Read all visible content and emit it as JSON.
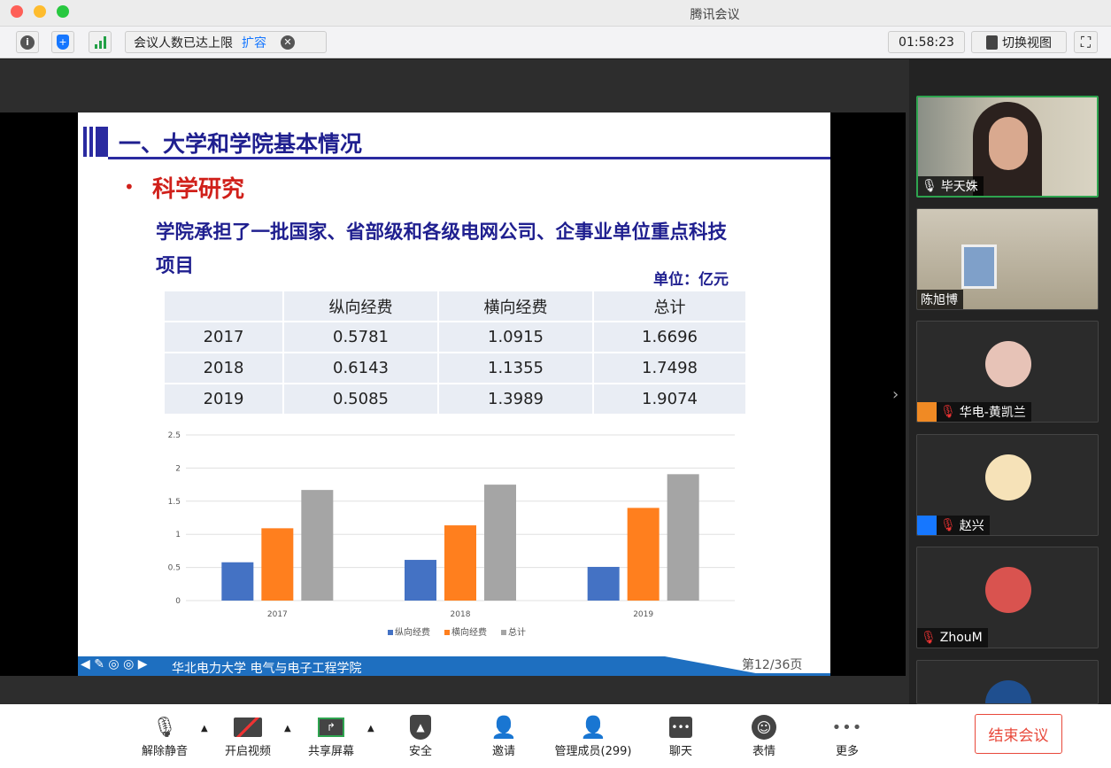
{
  "window": {
    "title": "腾讯会议"
  },
  "toolbar": {
    "notice": "会议人数已达上限",
    "expand": "扩容",
    "timer": "01:58:23",
    "switch_view": "切换视图",
    "icons": [
      "info-icon",
      "shield-icon",
      "signal-icon",
      "close-icon",
      "fullscreen-icon"
    ]
  },
  "slide": {
    "heading": "一、大学和学院基本情况",
    "bullet": "科学研究",
    "text_line1": "学院承担了一批国家、省部级和各级电网公司、企事业单位重点科技",
    "text_line2": "项目",
    "unit": "单位：亿元",
    "table": {
      "headers": [
        "",
        "纵向经费",
        "横向经费",
        "总计"
      ],
      "rows": [
        [
          "2017",
          "0.5781",
          "1.0915",
          "1.6696"
        ],
        [
          "2018",
          "0.6143",
          "1.1355",
          "1.7498"
        ],
        [
          "2019",
          "0.5085",
          "1.3989",
          "1.9074"
        ]
      ]
    },
    "footer": "华北电力大学 电气与电子工程学院",
    "page": "第12/36页"
  },
  "chart_data": {
    "type": "bar",
    "categories": [
      "2017",
      "2018",
      "2019"
    ],
    "series": [
      {
        "name": "纵向经费",
        "values": [
          0.5781,
          0.6143,
          0.5085
        ],
        "color": "#4472c4"
      },
      {
        "name": "横向经费",
        "values": [
          1.0915,
          1.1355,
          1.3989
        ],
        "color": "#ff7f1e"
      },
      {
        "name": "总计",
        "values": [
          1.6696,
          1.7498,
          1.9074
        ],
        "color": "#a5a5a5"
      }
    ],
    "ylim": [
      0,
      2.5
    ],
    "yticks": [
      "0",
      "0.5",
      "1",
      "1.5",
      "2",
      "2.5"
    ],
    "grid": true,
    "legend": "bottom"
  },
  "participants": [
    {
      "name": "毕天姝",
      "muted": false
    },
    {
      "name": "陈旭博",
      "muted": false
    },
    {
      "name": "华电-黄凯兰",
      "muted": true
    },
    {
      "name": "赵兴",
      "muted": true
    },
    {
      "name": "ZhouM",
      "muted": true
    }
  ],
  "bottom_bar": {
    "unmute": "解除静音",
    "video": "开启视频",
    "share": "共享屏幕",
    "security": "安全",
    "invite": "邀请",
    "members": "管理成员(299)",
    "chat": "聊天",
    "reactions": "表情",
    "more": "更多",
    "end": "结束会议"
  },
  "colors": {
    "accent": "#1677ff",
    "end": "#e8483a",
    "slide_title": "#1f1f8f",
    "bullet": "#d0201a"
  }
}
